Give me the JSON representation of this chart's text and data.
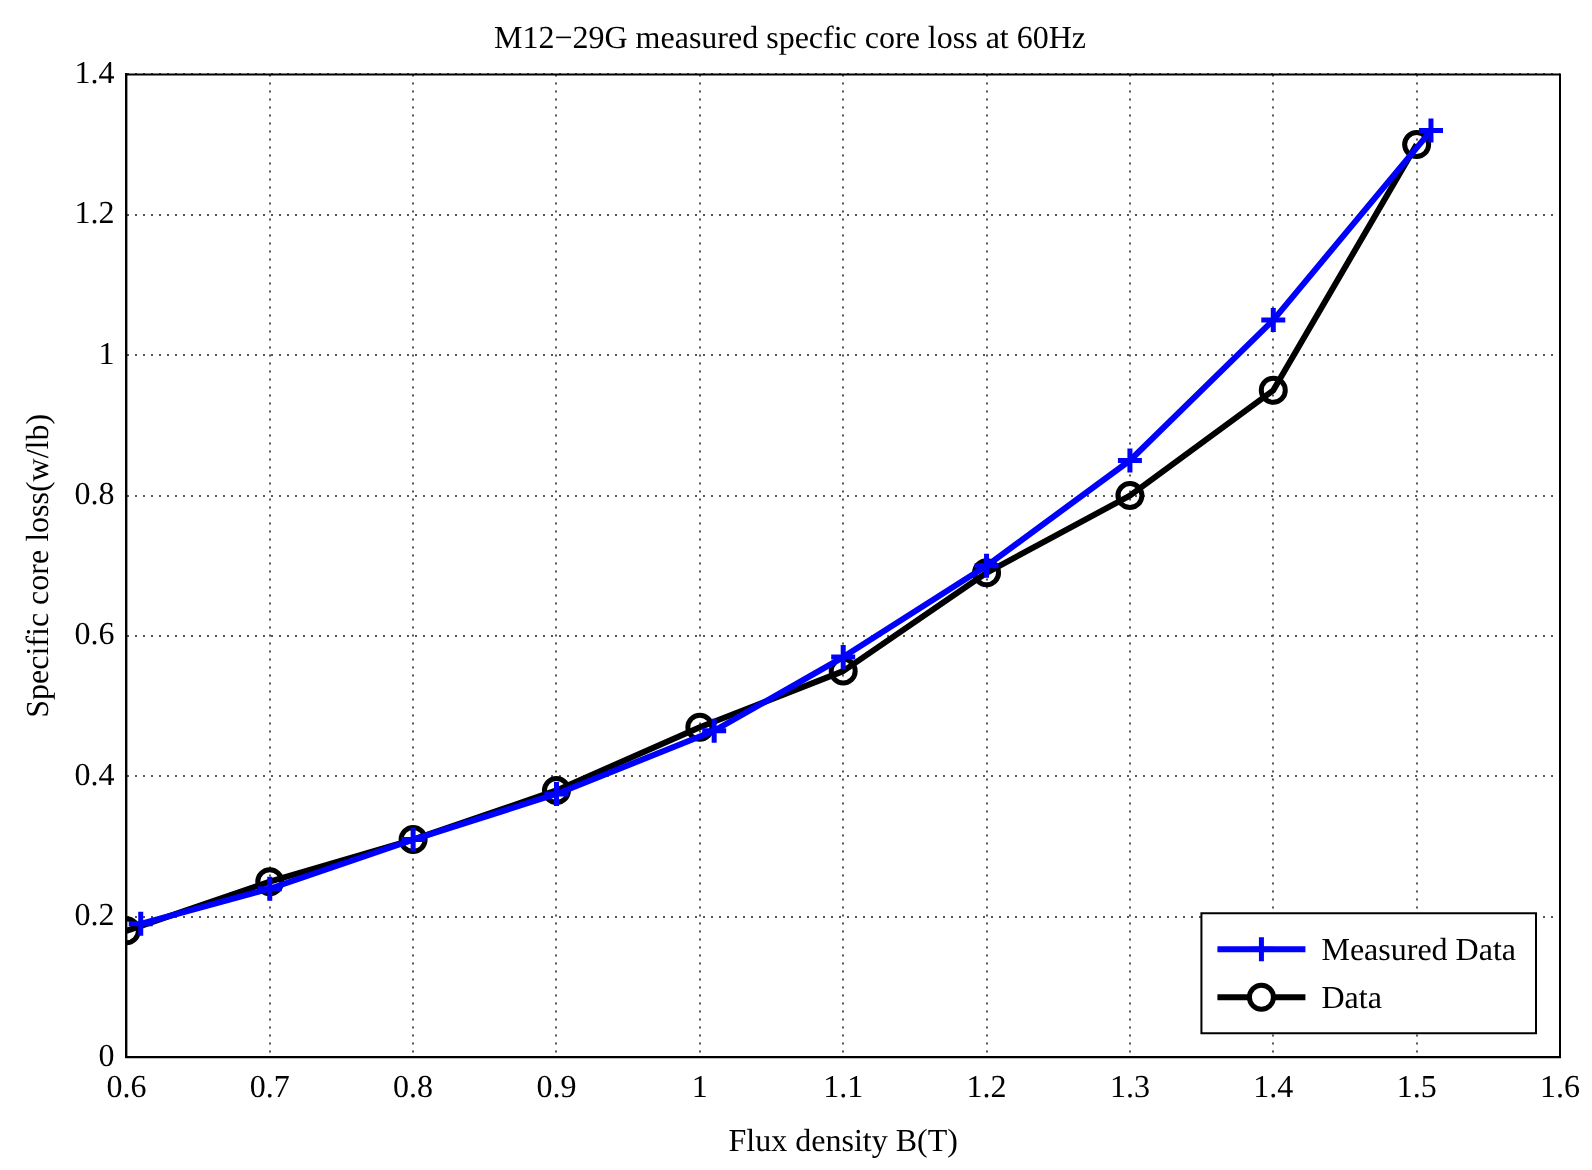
{
  "chart_data": {
    "type": "line",
    "title": "M12−29G measured specfic core loss at 60Hz",
    "xlabel": "Flux density B(T)",
    "ylabel": "Specific core loss(w/lb)",
    "xlim": [
      0.6,
      1.6
    ],
    "xticks": [
      0.6,
      0.7,
      0.8,
      0.9,
      1,
      1.1,
      1.2,
      1.3,
      1.4,
      1.5,
      1.6
    ],
    "ylim": [
      0,
      1.4
    ],
    "yticks": [
      0,
      0.2,
      0.4,
      0.6,
      0.8,
      1,
      1.2,
      1.4
    ],
    "grid": true,
    "legend": "bottom right",
    "line_style": "solid",
    "series": [
      {
        "name": "Measured Data",
        "color": "#0000ff",
        "marker": "cross",
        "x": [
          0.61,
          0.7,
          0.8,
          0.9,
          1.01,
          1.1,
          1.2,
          1.3,
          1.4,
          1.51
        ],
        "values": [
          0.19,
          0.24,
          0.31,
          0.375,
          0.465,
          0.57,
          0.7,
          0.85,
          1.05,
          1.32
        ]
      },
      {
        "name": "Data",
        "color": "#000000",
        "marker": "circle",
        "x": [
          0.6,
          0.7,
          0.8,
          0.9,
          1,
          1.1,
          1.2,
          1.3,
          1.4,
          1.5
        ],
        "values": [
          0.18,
          0.25,
          0.31,
          0.38,
          0.47,
          0.55,
          0.69,
          0.8,
          0.95,
          1.3
        ]
      }
    ]
  }
}
